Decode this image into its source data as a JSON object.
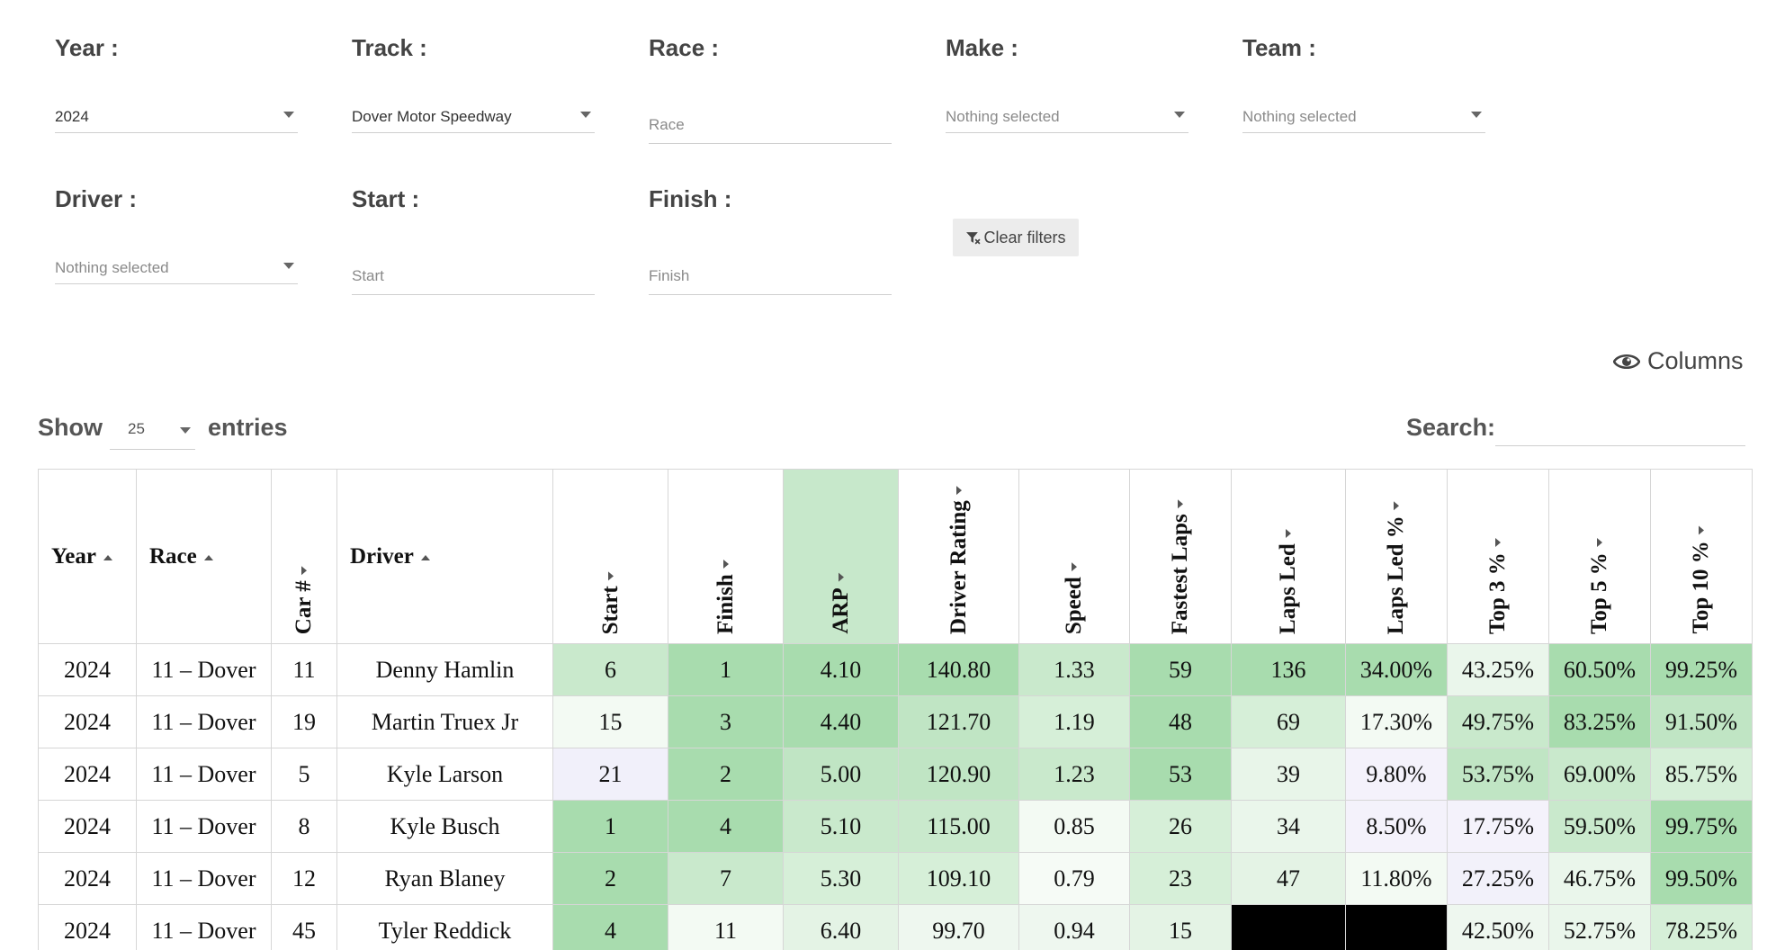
{
  "filters": {
    "year": {
      "label": "Year :",
      "value": "2024"
    },
    "track": {
      "label": "Track :",
      "value": "Dover Motor Speedway"
    },
    "race": {
      "label": "Race :",
      "placeholder": "Race"
    },
    "make": {
      "label": "Make :",
      "placeholder": "Nothing selected"
    },
    "team": {
      "label": "Team :",
      "placeholder": "Nothing selected"
    },
    "driver": {
      "label": "Driver :",
      "placeholder": "Nothing selected"
    },
    "start": {
      "label": "Start :",
      "placeholder": "Start"
    },
    "finish": {
      "label": "Finish :",
      "placeholder": "Finish"
    },
    "clear_label": "Clear filters"
  },
  "toolbar": {
    "columns_label": "Columns",
    "show_label": "Show",
    "entries_value": "25",
    "entries_label": "entries",
    "search_label": "Search:"
  },
  "table": {
    "headers": [
      "Year",
      "Race",
      "Car #",
      "Driver",
      "Start",
      "Finish",
      "ARP",
      "Driver Rating",
      "Speed",
      "Fastest Laps",
      "Laps Led",
      "Laps Led %",
      "Top 3 %",
      "Top 5 %",
      "Top 10 %"
    ],
    "rows": [
      [
        "2024",
        "11 – Dover",
        "11",
        "Denny Hamlin",
        "6",
        "1",
        "4.10",
        "140.80",
        "1.33",
        "59",
        "136",
        "34.00%",
        "43.25%",
        "60.50%",
        "99.25%"
      ],
      [
        "2024",
        "11 – Dover",
        "19",
        "Martin Truex Jr",
        "15",
        "3",
        "4.40",
        "121.70",
        "1.19",
        "48",
        "69",
        "17.30%",
        "49.75%",
        "83.25%",
        "91.50%"
      ],
      [
        "2024",
        "11 – Dover",
        "5",
        "Kyle Larson",
        "21",
        "2",
        "5.00",
        "120.90",
        "1.23",
        "53",
        "39",
        "9.80%",
        "53.75%",
        "69.00%",
        "85.75%"
      ],
      [
        "2024",
        "11 – Dover",
        "8",
        "Kyle Busch",
        "1",
        "4",
        "5.10",
        "115.00",
        "0.85",
        "26",
        "34",
        "8.50%",
        "17.75%",
        "59.50%",
        "99.75%"
      ],
      [
        "2024",
        "11 – Dover",
        "12",
        "Ryan Blaney",
        "2",
        "7",
        "5.30",
        "109.10",
        "0.79",
        "23",
        "47",
        "11.80%",
        "27.25%",
        "46.75%",
        "99.50%"
      ],
      [
        "2024",
        "11 – Dover",
        "45",
        "Tyler Reddick",
        "4",
        "11",
        "6.40",
        "99.70",
        "0.94",
        "15",
        "",
        "",
        "42.50%",
        "52.75%",
        "78.25%"
      ]
    ],
    "cell_colors": [
      [
        "#ffffff",
        "#ffffff",
        "#ffffff",
        "#ffffff",
        "#c9e9cc",
        "#a8dcae",
        "#a8dcae",
        "#a8dcae",
        "#c9e9cc",
        "#a8dcae",
        "#a8dcae",
        "#a8dcae",
        "#eaf6eb",
        "#a8dcae",
        "#a8dcae"
      ],
      [
        "#ffffff",
        "#ffffff",
        "#ffffff",
        "#ffffff",
        "#f3faf3",
        "#a8dcae",
        "#a8dcae",
        "#c0e5c4",
        "#d6efd8",
        "#a8dcae",
        "#d6efd8",
        "#f3faf3",
        "#c9e9cc",
        "#a8dcae",
        "#c0e5c4"
      ],
      [
        "#ffffff",
        "#ffffff",
        "#ffffff",
        "#ffffff",
        "#f1f0fa",
        "#a8dcae",
        "#c0e5c4",
        "#c0e5c4",
        "#c9e9cc",
        "#a8dcae",
        "#e8f5e9",
        "#f4f2fb",
        "#c0e5c4",
        "#c9e9cc",
        "#d6efd8"
      ],
      [
        "#ffffff",
        "#ffffff",
        "#ffffff",
        "#ffffff",
        "#a8dcae",
        "#a8dcae",
        "#c9e9cc",
        "#c9e9cc",
        "#f3faf3",
        "#d6efd8",
        "#eaf6eb",
        "#f4f2fb",
        "#f4f2fb",
        "#c9e9cc",
        "#a8dcae"
      ],
      [
        "#ffffff",
        "#ffffff",
        "#ffffff",
        "#ffffff",
        "#a8dcae",
        "#c9e9cc",
        "#d6efd8",
        "#d6efd8",
        "#f6fbf6",
        "#d6efd8",
        "#e4f3e5",
        "#f3faf3",
        "#f2f1fa",
        "#eaf6eb",
        "#a8dcae"
      ],
      [
        "#ffffff",
        "#ffffff",
        "#ffffff",
        "#ffffff",
        "#a8dcae",
        "#f3faf3",
        "#e4f3e5",
        "#eef7ef",
        "#eef7ef",
        "#e4f3e5",
        "#000000",
        "#000000",
        "#eef7ef",
        "#eaf6eb",
        "#d6efd8"
      ]
    ]
  }
}
